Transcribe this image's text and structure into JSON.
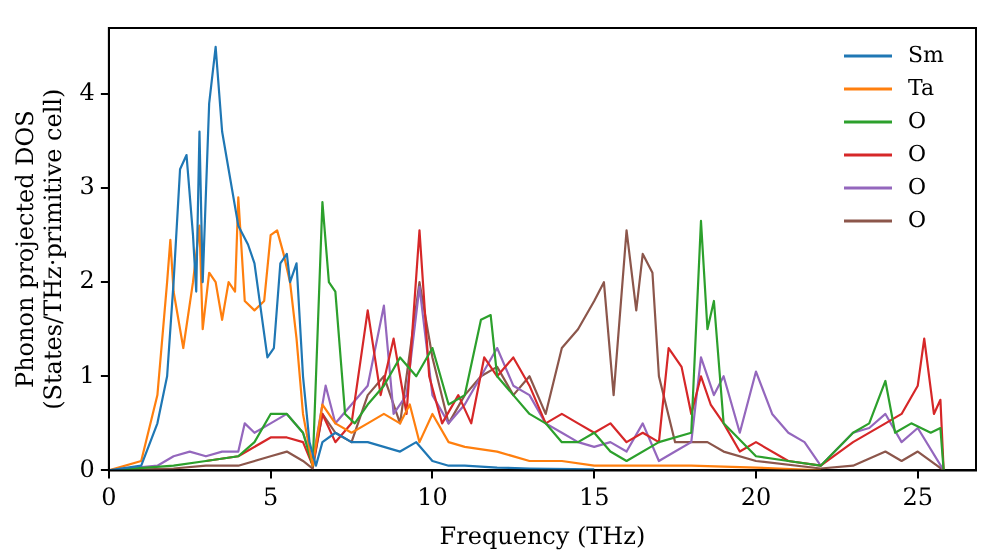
{
  "chart_data": {
    "type": "line",
    "xlabel": "Frequency (THz)",
    "ylabel": "Phonon projected DOS\n(States/THz·primitive cell)",
    "xlim": [
      0,
      26.8
    ],
    "ylim": [
      0,
      4.7
    ],
    "xticks": [
      0,
      5,
      10,
      15,
      20,
      25
    ],
    "yticks": [
      0,
      1,
      2,
      3,
      4
    ],
    "legend": "top right",
    "grid": false,
    "marker": "none",
    "line_style": "solid",
    "series": [
      {
        "name": "Sm",
        "color": "#1f77b4",
        "x": [
          0,
          1,
          1.5,
          1.8,
          2,
          2.2,
          2.4,
          2.6,
          2.7,
          2.8,
          2.9,
          3.1,
          3.3,
          3.5,
          3.7,
          4,
          4.3,
          4.5,
          4.7,
          4.9,
          5.1,
          5.3,
          5.5,
          5.6,
          5.8,
          6,
          6.2,
          6.4,
          6.6,
          7,
          7.5,
          8,
          8.5,
          9,
          9.5,
          10,
          10.5,
          11,
          12,
          13,
          15
        ],
        "values": [
          0,
          0.05,
          0.5,
          1,
          2,
          3.2,
          3.35,
          2.5,
          1.9,
          3.6,
          2,
          3.9,
          4.5,
          3.6,
          3.2,
          2.6,
          2.4,
          2.2,
          1.7,
          1.2,
          1.3,
          2.2,
          2.3,
          2,
          2.2,
          1,
          0.3,
          0.05,
          0.3,
          0.4,
          0.3,
          0.3,
          0.25,
          0.2,
          0.3,
          0.1,
          0.05,
          0.05,
          0.03,
          0.02,
          0.01
        ]
      },
      {
        "name": "Ta",
        "color": "#ff7f0e",
        "x": [
          0,
          1,
          1.5,
          1.8,
          1.9,
          2,
          2.3,
          2.6,
          2.8,
          2.9,
          3.1,
          3.3,
          3.5,
          3.7,
          3.9,
          4,
          4.2,
          4.5,
          4.8,
          5,
          5.2,
          5.4,
          5.6,
          5.8,
          6,
          6.3,
          6.6,
          7,
          7.5,
          8,
          8.5,
          9,
          9.3,
          9.6,
          10,
          10.5,
          11,
          12,
          13,
          14,
          15,
          16,
          18,
          20,
          22
        ],
        "values": [
          0,
          0.1,
          0.8,
          2,
          2.45,
          1.9,
          1.3,
          2,
          2.6,
          1.5,
          2.1,
          2,
          1.6,
          2,
          1.9,
          2.9,
          1.8,
          1.7,
          1.8,
          2.5,
          2.55,
          2.3,
          2,
          1.4,
          0.6,
          0.05,
          0.7,
          0.5,
          0.4,
          0.5,
          0.6,
          0.5,
          0.7,
          0.3,
          0.6,
          0.3,
          0.25,
          0.2,
          0.1,
          0.1,
          0.05,
          0.05,
          0.05,
          0.03,
          0
        ]
      },
      {
        "name": "O",
        "color": "#2ca02c",
        "x": [
          0,
          2,
          3,
          4,
          4.5,
          5,
          5.5,
          6,
          6.3,
          6.6,
          6.8,
          7,
          7.3,
          7.6,
          8,
          8.5,
          9,
          9.5,
          10,
          10.5,
          11,
          11.5,
          11.8,
          12,
          12.5,
          13,
          13.5,
          14,
          14.5,
          15,
          15.5,
          16,
          17,
          18,
          18.3,
          18.5,
          18.7,
          19,
          20,
          21,
          22,
          23,
          23.5,
          24,
          24.3,
          24.8,
          25.4,
          25.7,
          25.8
        ],
        "values": [
          0,
          0.05,
          0.1,
          0.15,
          0.3,
          0.6,
          0.6,
          0.4,
          0.05,
          2.85,
          2,
          1.9,
          0.6,
          0.5,
          0.7,
          0.9,
          1.2,
          1,
          1.3,
          0.7,
          0.8,
          1.6,
          1.65,
          1,
          0.8,
          0.6,
          0.5,
          0.3,
          0.3,
          0.4,
          0.2,
          0.1,
          0.3,
          0.4,
          2.65,
          1.5,
          1.8,
          0.5,
          0.15,
          0.1,
          0.05,
          0.4,
          0.5,
          0.95,
          0.4,
          0.5,
          0.4,
          0.45,
          0
        ]
      },
      {
        "name": "O",
        "color": "#d62728",
        "x": [
          3,
          4,
          5,
          5.5,
          6,
          6.3,
          6.6,
          7,
          7.5,
          8,
          8.4,
          8.8,
          9.2,
          9.6,
          9.9,
          10.3,
          10.8,
          11.2,
          11.6,
          12,
          12.5,
          13,
          13.5,
          14,
          14.5,
          15,
          15.5,
          16,
          16.5,
          17,
          17.3,
          17.7,
          18,
          18.3,
          18.6,
          19,
          19.5,
          20,
          21,
          22,
          23,
          24,
          24.5,
          25,
          25.2,
          25.5,
          25.7,
          25.8
        ],
        "values": [
          0.1,
          0.15,
          0.35,
          0.35,
          0.3,
          0.05,
          0.6,
          0.3,
          0.5,
          1.7,
          0.8,
          1.4,
          0.6,
          2.55,
          1,
          0.5,
          0.8,
          0.5,
          1.2,
          1,
          1.2,
          0.9,
          0.5,
          0.6,
          0.5,
          0.4,
          0.5,
          0.3,
          0.4,
          0.3,
          1.3,
          1.1,
          0.6,
          1,
          0.7,
          0.5,
          0.2,
          0.3,
          0.1,
          0.05,
          0.3,
          0.5,
          0.6,
          0.9,
          1.4,
          0.6,
          0.75,
          0
        ]
      },
      {
        "name": "O",
        "color": "#9467bd",
        "x": [
          0,
          1.5,
          2,
          2.5,
          3,
          3.5,
          4,
          4.2,
          4.5,
          5,
          5.5,
          6,
          6.3,
          6.7,
          7,
          7.5,
          8,
          8.5,
          8.8,
          9.2,
          9.6,
          10,
          10.5,
          11,
          11.5,
          12,
          12.5,
          13,
          13.5,
          14,
          14.5,
          15,
          15.5,
          16,
          16.5,
          17,
          17.5,
          18,
          18.3,
          18.7,
          19,
          19.5,
          20,
          20.5,
          21,
          21.5,
          22,
          23,
          23.5,
          24,
          24.5,
          25,
          25.8
        ],
        "values": [
          0,
          0.05,
          0.15,
          0.2,
          0.15,
          0.2,
          0.2,
          0.5,
          0.4,
          0.5,
          0.6,
          0.4,
          0.1,
          0.9,
          0.5,
          0.7,
          0.9,
          1.75,
          0.6,
          0.8,
          1.95,
          0.8,
          0.5,
          0.7,
          1,
          1.3,
          0.9,
          0.8,
          0.5,
          0.4,
          0.3,
          0.25,
          0.3,
          0.2,
          0.5,
          0.1,
          0.2,
          0.3,
          1.2,
          0.8,
          1,
          0.4,
          1.05,
          0.6,
          0.4,
          0.3,
          0.05,
          0.4,
          0.45,
          0.6,
          0.3,
          0.45,
          0
        ]
      },
      {
        "name": "O",
        "color": "#8c564b",
        "x": [
          0,
          2,
          3,
          4,
          5,
          5.5,
          6,
          6.3,
          6.6,
          7,
          7.5,
          8,
          8.5,
          9,
          9.6,
          10,
          10.5,
          11,
          11.5,
          12,
          12.5,
          13,
          13.5,
          14,
          14.5,
          15,
          15.3,
          15.6,
          16,
          16.3,
          16.5,
          16.8,
          17,
          17.5,
          18,
          18.5,
          19,
          20,
          22,
          23,
          24,
          24.5,
          25,
          25.8
        ],
        "values": [
          0,
          0.02,
          0.05,
          0.05,
          0.15,
          0.2,
          0.1,
          0.02,
          0.6,
          0.4,
          0.3,
          0.8,
          1,
          0.5,
          2,
          1.2,
          0.5,
          0.8,
          1,
          1.1,
          0.8,
          1,
          0.6,
          1.3,
          1.5,
          1.8,
          2,
          0.8,
          2.55,
          1.7,
          2.3,
          2.1,
          1,
          0.3,
          0.3,
          0.3,
          0.2,
          0.1,
          0.02,
          0.05,
          0.2,
          0.1,
          0.2,
          0
        ]
      }
    ]
  }
}
